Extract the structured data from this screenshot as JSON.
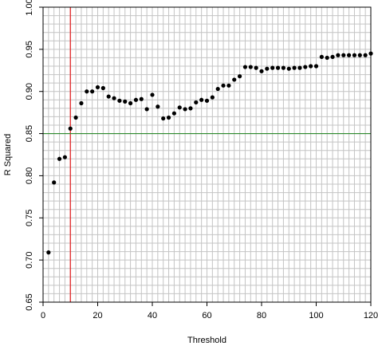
{
  "chart_data": {
    "type": "scatter",
    "title": "",
    "xlabel": "Threshold",
    "ylabel": "R Squared",
    "xlim": [
      0,
      120
    ],
    "ylim": [
      0.65,
      1.0
    ],
    "x_ticks": [
      "0",
      "20",
      "40",
      "60",
      "80",
      "100",
      "120"
    ],
    "y_ticks": [
      "0.65",
      "0.70",
      "0.75",
      "0.80",
      "0.85",
      "0.90",
      "0.95",
      "1.00"
    ],
    "grid": true,
    "reference_lines": [
      {
        "orientation": "vertical",
        "value": 10,
        "color": "#e31a1c"
      },
      {
        "orientation": "horizontal",
        "value": 0.85,
        "color": "#2e8b2e"
      }
    ],
    "series": [
      {
        "color": "#000000",
        "points": [
          [
            2,
            0.709
          ],
          [
            4,
            0.792
          ],
          [
            6,
            0.82
          ],
          [
            8,
            0.822
          ],
          [
            10,
            0.856
          ],
          [
            12,
            0.869
          ],
          [
            14,
            0.886
          ],
          [
            16,
            0.9
          ],
          [
            18,
            0.9
          ],
          [
            20,
            0.905
          ],
          [
            22,
            0.904
          ],
          [
            24,
            0.894
          ],
          [
            26,
            0.892
          ],
          [
            28,
            0.889
          ],
          [
            30,
            0.888
          ],
          [
            32,
            0.886
          ],
          [
            34,
            0.89
          ],
          [
            36,
            0.891
          ],
          [
            38,
            0.879
          ],
          [
            40,
            0.896
          ],
          [
            42,
            0.882
          ],
          [
            44,
            0.868
          ],
          [
            46,
            0.869
          ],
          [
            48,
            0.874
          ],
          [
            50,
            0.881
          ],
          [
            52,
            0.879
          ],
          [
            54,
            0.88
          ],
          [
            56,
            0.887
          ],
          [
            58,
            0.89
          ],
          [
            60,
            0.889
          ],
          [
            62,
            0.893
          ],
          [
            64,
            0.903
          ],
          [
            66,
            0.907
          ],
          [
            68,
            0.907
          ],
          [
            70,
            0.914
          ],
          [
            72,
            0.918
          ],
          [
            74,
            0.929
          ],
          [
            76,
            0.929
          ],
          [
            78,
            0.928
          ],
          [
            80,
            0.924
          ],
          [
            82,
            0.927
          ],
          [
            84,
            0.928
          ],
          [
            86,
            0.928
          ],
          [
            88,
            0.928
          ],
          [
            90,
            0.927
          ],
          [
            92,
            0.928
          ],
          [
            94,
            0.928
          ],
          [
            96,
            0.929
          ],
          [
            98,
            0.93
          ],
          [
            100,
            0.93
          ],
          [
            102,
            0.941
          ],
          [
            104,
            0.94
          ],
          [
            106,
            0.941
          ],
          [
            108,
            0.943
          ],
          [
            110,
            0.943
          ],
          [
            112,
            0.943
          ],
          [
            114,
            0.943
          ],
          [
            116,
            0.943
          ],
          [
            118,
            0.943
          ],
          [
            120,
            0.945
          ]
        ]
      }
    ]
  }
}
